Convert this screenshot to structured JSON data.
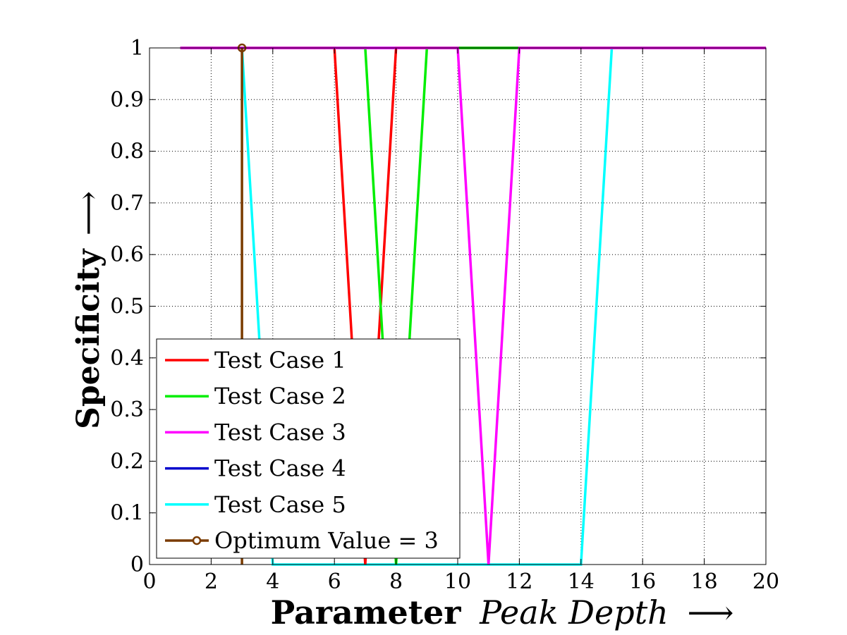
{
  "chart_data": {
    "type": "line",
    "xlabel_bold": "Parameter",
    "xlabel_italic": "Peak Depth",
    "xlabel_arrow": "⟶",
    "ylabel": "Specificity",
    "ylabel_arrow": "⟶",
    "xlim": [
      0,
      20
    ],
    "ylim": [
      0,
      1
    ],
    "xticks": [
      0,
      2,
      4,
      6,
      8,
      10,
      12,
      14,
      16,
      18,
      20
    ],
    "yticks": [
      0,
      0.1,
      0.2,
      0.3,
      0.4,
      0.5,
      0.6,
      0.7,
      0.8,
      0.9,
      1
    ],
    "grid": true,
    "legend_position": "bottom-left",
    "series": [
      {
        "name": "Test Case 1",
        "color": "#ff0000",
        "x": [
          1,
          2,
          3,
          4,
          5,
          6,
          7,
          8,
          9,
          10,
          11,
          12,
          13,
          14,
          15,
          16,
          17,
          18,
          19,
          20
        ],
        "y": [
          1,
          1,
          1,
          1,
          1,
          1,
          0,
          1,
          1,
          1,
          1,
          1,
          1,
          1,
          1,
          1,
          1,
          1,
          1,
          1
        ]
      },
      {
        "name": "Test Case 2",
        "color": "#00ee00",
        "x": [
          1,
          2,
          3,
          4,
          5,
          6,
          7,
          8,
          9,
          10,
          11,
          12,
          13,
          14,
          15,
          16,
          17,
          18,
          19,
          20
        ],
        "y": [
          1,
          1,
          1,
          1,
          1,
          1,
          1,
          0,
          1,
          1,
          1,
          1,
          1,
          1,
          1,
          1,
          1,
          1,
          1,
          1
        ]
      },
      {
        "name": "Test Case 3",
        "color": "#ff00ff",
        "x": [
          1,
          2,
          3,
          4,
          5,
          6,
          7,
          8,
          9,
          10,
          11,
          12,
          13,
          14,
          15,
          16,
          17,
          18,
          19,
          20
        ],
        "y": [
          1,
          1,
          1,
          1,
          1,
          1,
          1,
          1,
          1,
          1,
          0,
          1,
          1,
          1,
          1,
          1,
          1,
          1,
          1,
          1
        ]
      },
      {
        "name": "Test Case 4",
        "color": "#0000cc",
        "x": [
          1,
          2,
          3,
          4,
          5,
          6,
          7,
          8,
          9,
          10,
          11,
          12,
          13,
          14,
          15,
          16,
          17,
          18,
          19,
          20
        ],
        "y": [
          1,
          1,
          1,
          1,
          1,
          1,
          1,
          1,
          1,
          1,
          1,
          1,
          1,
          1,
          1,
          1,
          1,
          1,
          1,
          1
        ]
      },
      {
        "name": "Test Case 5",
        "color": "#00ffff",
        "x": [
          1,
          2,
          3,
          4,
          5,
          6,
          7,
          8,
          9,
          10,
          11,
          12,
          13,
          14,
          15,
          16,
          17,
          18,
          19,
          20
        ],
        "y": [
          1,
          1,
          1,
          0,
          0,
          0,
          0,
          0,
          0,
          0,
          0,
          0,
          0,
          0,
          1,
          1,
          1,
          1,
          1,
          1
        ]
      },
      {
        "name": "Optimum Value = 3",
        "color": "#7a3b00",
        "x": [
          3,
          3
        ],
        "y": [
          0,
          1
        ],
        "marker": "circle-open"
      }
    ]
  }
}
